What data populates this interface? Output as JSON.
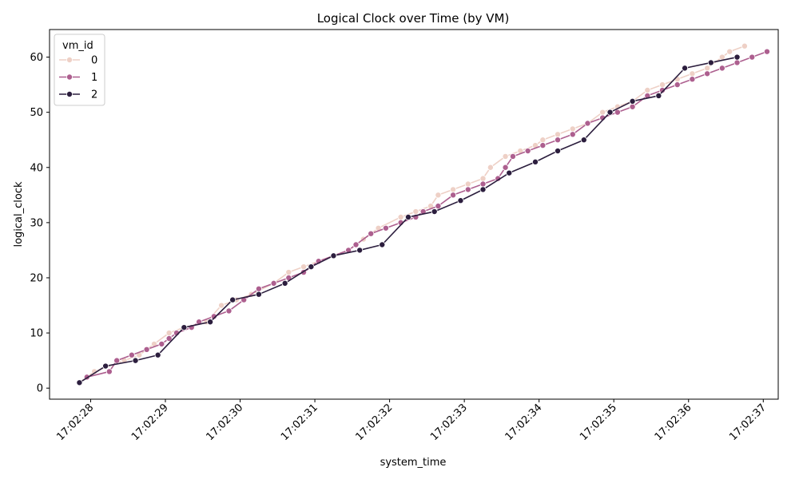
{
  "chart_data": {
    "type": "line",
    "title": "Logical Clock over Time (by VM)",
    "xlabel": "system_time",
    "ylabel": "logical_clock",
    "x_unit": "time (HH:MM:SS)",
    "xlim": [
      "17:02:27.45",
      "17:02:37.2"
    ],
    "ylim": [
      -2,
      65
    ],
    "x_ticks": [
      "17:02:28",
      "17:02:29",
      "17:02:30",
      "17:02:31",
      "17:02:32",
      "17:02:33",
      "17:02:34",
      "17:02:35",
      "17:02:36",
      "17:02:37"
    ],
    "y_ticks": [
      0,
      10,
      20,
      30,
      40,
      50,
      60
    ],
    "grid": false,
    "legend": {
      "title": "vm_id",
      "placement": "top-left"
    },
    "series": [
      {
        "name": "0",
        "color": "#eed0c6",
        "points": [
          [
            "17:02:27.85",
            1
          ],
          [
            "17:02:28.05",
            3
          ],
          [
            "17:02:28.45",
            5
          ],
          [
            "17:02:28.65",
            6
          ],
          [
            "17:02:28.85",
            8
          ],
          [
            "17:02:29.05",
            10
          ],
          [
            "17:02:29.25",
            11
          ],
          [
            "17:02:29.55",
            12
          ],
          [
            "17:02:29.75",
            15
          ],
          [
            "17:02:29.95",
            16
          ],
          [
            "17:02:30.15",
            17
          ],
          [
            "17:02:30.45",
            19
          ],
          [
            "17:02:30.65",
            21
          ],
          [
            "17:02:30.85",
            22
          ],
          [
            "17:02:31.05",
            23
          ],
          [
            "17:02:31.25",
            24
          ],
          [
            "17:02:31.45",
            25
          ],
          [
            "17:02:31.65",
            27
          ],
          [
            "17:02:31.85",
            29
          ],
          [
            "17:02:32.15",
            31
          ],
          [
            "17:02:32.35",
            32
          ],
          [
            "17:02:32.55",
            33
          ],
          [
            "17:02:32.65",
            35
          ],
          [
            "17:02:32.85",
            36
          ],
          [
            "17:02:33.05",
            37
          ],
          [
            "17:02:33.25",
            38
          ],
          [
            "17:02:33.35",
            40
          ],
          [
            "17:02:33.55",
            42
          ],
          [
            "17:02:33.75",
            43
          ],
          [
            "17:02:33.95",
            44
          ],
          [
            "17:02:34.05",
            45
          ],
          [
            "17:02:34.25",
            46
          ],
          [
            "17:02:34.45",
            47
          ],
          [
            "17:02:34.65",
            48
          ],
          [
            "17:02:34.85",
            50
          ],
          [
            "17:02:35.05",
            51
          ],
          [
            "17:02:35.25",
            52
          ],
          [
            "17:02:35.45",
            54
          ],
          [
            "17:02:35.65",
            55
          ],
          [
            "17:02:35.85",
            56
          ],
          [
            "17:02:36.05",
            57
          ],
          [
            "17:02:36.25",
            58
          ],
          [
            "17:02:36.45",
            60
          ],
          [
            "17:02:36.55",
            61
          ],
          [
            "17:02:36.75",
            62
          ]
        ]
      },
      {
        "name": "1",
        "color": "#ad5f8f",
        "points": [
          [
            "17:02:27.95",
            2
          ],
          [
            "17:02:28.25",
            3
          ],
          [
            "17:02:28.35",
            5
          ],
          [
            "17:02:28.55",
            6
          ],
          [
            "17:02:28.75",
            7
          ],
          [
            "17:02:28.95",
            8
          ],
          [
            "17:02:29.05",
            9
          ],
          [
            "17:02:29.15",
            10
          ],
          [
            "17:02:29.35",
            11
          ],
          [
            "17:02:29.45",
            12
          ],
          [
            "17:02:29.65",
            13
          ],
          [
            "17:02:29.85",
            14
          ],
          [
            "17:02:30.05",
            16
          ],
          [
            "17:02:30.25",
            18
          ],
          [
            "17:02:30.45",
            19
          ],
          [
            "17:02:30.65",
            20
          ],
          [
            "17:02:30.85",
            21
          ],
          [
            "17:02:30.95",
            22
          ],
          [
            "17:02:31.05",
            23
          ],
          [
            "17:02:31.25",
            24
          ],
          [
            "17:02:31.45",
            25
          ],
          [
            "17:02:31.55",
            26
          ],
          [
            "17:02:31.75",
            28
          ],
          [
            "17:02:31.95",
            29
          ],
          [
            "17:02:32.15",
            30
          ],
          [
            "17:02:32.35",
            31
          ],
          [
            "17:02:32.45",
            32
          ],
          [
            "17:02:32.65",
            33
          ],
          [
            "17:02:32.85",
            35
          ],
          [
            "17:02:33.05",
            36
          ],
          [
            "17:02:33.25",
            37
          ],
          [
            "17:02:33.45",
            38
          ],
          [
            "17:02:33.55",
            40
          ],
          [
            "17:02:33.65",
            42
          ],
          [
            "17:02:33.85",
            43
          ],
          [
            "17:02:34.05",
            44
          ],
          [
            "17:02:34.25",
            45
          ],
          [
            "17:02:34.45",
            46
          ],
          [
            "17:02:34.65",
            48
          ],
          [
            "17:02:34.85",
            49
          ],
          [
            "17:02:35.05",
            50
          ],
          [
            "17:02:35.25",
            51
          ],
          [
            "17:02:35.45",
            53
          ],
          [
            "17:02:35.65",
            54
          ],
          [
            "17:02:35.85",
            55
          ],
          [
            "17:02:36.05",
            56
          ],
          [
            "17:02:36.25",
            57
          ],
          [
            "17:02:36.45",
            58
          ],
          [
            "17:02:36.65",
            59
          ],
          [
            "17:02:36.85",
            60
          ],
          [
            "17:02:37.05",
            61
          ]
        ]
      },
      {
        "name": "2",
        "color": "#2c1e3e",
        "points": [
          [
            "17:02:27.85",
            1
          ],
          [
            "17:02:28.2",
            4
          ],
          [
            "17:02:28.6",
            5
          ],
          [
            "17:02:28.9",
            6
          ],
          [
            "17:02:29.25",
            11
          ],
          [
            "17:02:29.6",
            12
          ],
          [
            "17:02:29.9",
            16
          ],
          [
            "17:02:30.25",
            17
          ],
          [
            "17:02:30.6",
            19
          ],
          [
            "17:02:30.95",
            22
          ],
          [
            "17:02:31.25",
            24
          ],
          [
            "17:02:31.6",
            25
          ],
          [
            "17:02:31.9",
            26
          ],
          [
            "17:02:32.25",
            31
          ],
          [
            "17:02:32.6",
            32
          ],
          [
            "17:02:32.95",
            34
          ],
          [
            "17:02:33.25",
            36
          ],
          [
            "17:02:33.6",
            39
          ],
          [
            "17:02:33.95",
            41
          ],
          [
            "17:02:34.25",
            43
          ],
          [
            "17:02:34.6",
            45
          ],
          [
            "17:02:34.95",
            50
          ],
          [
            "17:02:35.25",
            52
          ],
          [
            "17:02:35.6",
            53
          ],
          [
            "17:02:35.95",
            58
          ],
          [
            "17:02:36.3",
            59
          ],
          [
            "17:02:36.65",
            60
          ]
        ]
      }
    ]
  }
}
